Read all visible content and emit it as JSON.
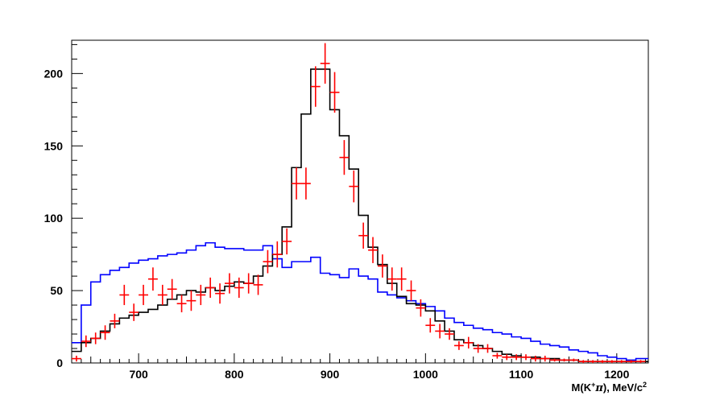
{
  "chart_data": {
    "type": "line",
    "title": "",
    "xlabel": "M(K",
    "xlabel_sup": "+",
    "xlabel_pi": "π",
    "xlabel_unit": "), MeV/c",
    "xlabel_unit_sup": "2",
    "ylabel": "",
    "xlim": [
      630,
      1233
    ],
    "ylim": [
      0,
      223
    ],
    "x_major_ticks": [
      700,
      800,
      900,
      1000,
      1100,
      1200
    ],
    "y_major_ticks": [
      0,
      50,
      100,
      150,
      200
    ],
    "grid": false,
    "legend": "none",
    "bin_edges": [
      630,
      640,
      650,
      660,
      670,
      680,
      690,
      700,
      710,
      720,
      730,
      740,
      750,
      760,
      770,
      780,
      790,
      800,
      810,
      820,
      830,
      840,
      850,
      860,
      870,
      880,
      890,
      900,
      910,
      920,
      930,
      940,
      950,
      960,
      970,
      980,
      990,
      1000,
      1010,
      1020,
      1030,
      1040,
      1050,
      1060,
      1070,
      1080,
      1090,
      1100,
      1110,
      1120,
      1130,
      1140,
      1150,
      1160,
      1170,
      1180,
      1190,
      1200,
      1210,
      1220,
      1233
    ],
    "series": [
      {
        "color": "#0000ff",
        "kind": "histogram",
        "values": [
          14,
          40,
          56,
          61,
          64,
          66,
          69,
          71,
          72,
          74,
          75,
          76,
          78,
          81,
          83,
          80,
          79,
          79,
          78,
          78,
          81,
          72,
          66,
          70,
          70,
          73,
          62,
          61,
          59,
          65,
          60,
          58,
          49,
          47,
          45,
          43,
          41,
          39,
          36,
          31,
          28,
          26,
          24,
          23,
          21,
          20,
          18,
          17,
          15,
          13,
          12,
          11,
          9,
          8,
          7,
          5,
          4,
          3,
          2,
          3
        ]
      },
      {
        "color": "#000000",
        "kind": "histogram",
        "values": [
          8,
          14,
          17,
          22,
          27,
          31,
          33,
          35,
          37,
          40,
          44,
          47,
          50,
          49,
          52,
          50,
          53,
          56,
          55,
          60,
          67,
          75,
          94,
          135,
          172,
          203,
          203,
          175,
          157,
          134,
          102,
          80,
          68,
          55,
          46,
          41,
          40,
          36,
          29,
          22,
          16,
          14,
          12,
          10,
          8,
          6,
          5,
          4,
          4,
          3,
          3,
          2,
          2,
          1,
          1,
          1,
          1,
          1,
          1,
          1
        ]
      },
      {
        "color": "#ff0000",
        "kind": "points",
        "x": [
          635,
          645,
          655,
          665,
          675,
          685,
          695,
          705,
          715,
          725,
          735,
          745,
          755,
          765,
          775,
          785,
          795,
          805,
          815,
          825,
          835,
          845,
          855,
          865,
          875,
          885,
          895,
          905,
          915,
          925,
          935,
          945,
          955,
          965,
          975,
          985,
          995,
          1005,
          1015,
          1025,
          1035,
          1045,
          1055,
          1065,
          1075,
          1085,
          1095,
          1105,
          1115,
          1125,
          1135,
          1145,
          1155,
          1165,
          1175,
          1185,
          1195,
          1205,
          1215,
          1225
        ],
        "y": [
          3,
          15,
          17,
          21,
          29,
          47,
          35,
          47,
          58,
          47,
          51,
          41,
          43,
          47,
          52,
          48,
          55,
          52,
          55,
          54,
          70,
          75,
          84,
          124,
          124,
          191,
          207,
          187,
          142,
          122,
          88,
          78,
          67,
          58,
          58,
          50,
          38,
          26,
          22,
          20,
          12,
          14,
          10,
          10,
          5,
          4,
          4,
          4,
          3,
          3,
          2,
          2,
          2,
          1,
          1,
          1,
          1,
          1,
          1,
          1
        ],
        "yerr": [
          2,
          4,
          4,
          5,
          5,
          7,
          6,
          7,
          8,
          7,
          7,
          6,
          7,
          7,
          7,
          7,
          7,
          7,
          7,
          7,
          8,
          9,
          9,
          11,
          11,
          14,
          14,
          14,
          12,
          11,
          9,
          9,
          8,
          8,
          8,
          7,
          6,
          5,
          5,
          4,
          3,
          4,
          3,
          3,
          2,
          2,
          2,
          2,
          2,
          2,
          1,
          1,
          1,
          1,
          1,
          1,
          1,
          1,
          1,
          1
        ]
      }
    ]
  }
}
